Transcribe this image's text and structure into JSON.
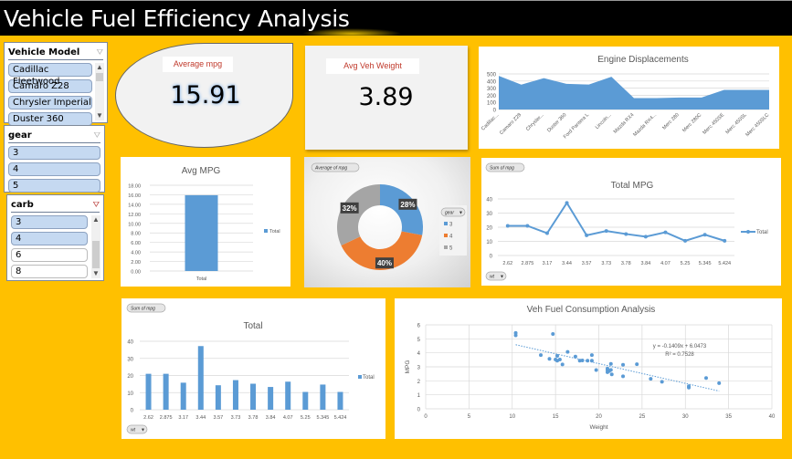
{
  "header": {
    "title": "Vehicle Fuel Efficiency Analysis"
  },
  "slicers": {
    "vehicle_model": {
      "title": "Vehicle Model",
      "items": [
        {
          "label": "Cadillac Fleetwood",
          "selected": true
        },
        {
          "label": "Camaro Z28",
          "selected": true
        },
        {
          "label": "Chrysler Imperial",
          "selected": true
        },
        {
          "label": "Duster 360",
          "selected": true
        }
      ]
    },
    "gear": {
      "title": "gear",
      "items": [
        {
          "label": "3",
          "selected": true
        },
        {
          "label": "4",
          "selected": true
        },
        {
          "label": "5",
          "selected": true
        }
      ]
    },
    "carb": {
      "title": "carb",
      "items": [
        {
          "label": "3",
          "selected": true
        },
        {
          "label": "4",
          "selected": true
        },
        {
          "label": "6",
          "selected": false
        },
        {
          "label": "8",
          "selected": false
        }
      ]
    }
  },
  "kpis": {
    "avg_mpg": {
      "label": "Average mpg",
      "value": "15.91"
    },
    "avg_weight": {
      "label": "Avg Veh Weight",
      "value": "3.89"
    }
  },
  "pills": {
    "average_of_mpg": "Average of mpg",
    "sum_of_mpg": "Sum of mpg",
    "wt": "wt",
    "gear": "gear"
  },
  "chart_data": [
    {
      "id": "engine_displacements",
      "type": "area",
      "title": "Engine Displacements",
      "categories": [
        "Cadillac...",
        "Camaro Z28",
        "Chrysler...",
        "Duster 360",
        "Ford Pantera L",
        "Lincoln...",
        "Mazda RX4",
        "Mazda RX4...",
        "Merc 280",
        "Merc 280C",
        "Merc 450SE",
        "Merc 450SL",
        "Merc 450SLC"
      ],
      "values": [
        472,
        350,
        440,
        360,
        351,
        460,
        160,
        160,
        167.6,
        167.6,
        275.8,
        275.8,
        275.8
      ],
      "ylim": [
        0,
        500
      ],
      "yticks": [
        0,
        100,
        200,
        300,
        400,
        500
      ],
      "color": "#5B9BD5"
    },
    {
      "id": "avg_mpg_bar",
      "type": "bar",
      "title": "Avg MPG",
      "categories": [
        "Total"
      ],
      "values": [
        15.91
      ],
      "ylim": [
        0,
        18
      ],
      "yticks": [
        "0.00",
        "2.00",
        "4.00",
        "6.00",
        "8.00",
        "10.00",
        "12.00",
        "14.00",
        "16.00",
        "18.00"
      ],
      "legend": [
        "Total"
      ],
      "color": "#5B9BD5"
    },
    {
      "id": "gear_donut",
      "type": "pie",
      "title": "Average of mpg",
      "categories": [
        "3",
        "4",
        "5"
      ],
      "values": [
        28,
        40,
        32
      ],
      "labels": [
        "28%",
        "40%",
        "32%"
      ],
      "colors": [
        "#5B9BD5",
        "#ED7D31",
        "#A5A5A5"
      ],
      "legend_title": "gear"
    },
    {
      "id": "total_mpg_line",
      "type": "line",
      "title": "Total MPG",
      "categories": [
        "2.62",
        "2.875",
        "3.17",
        "3.44",
        "3.57",
        "3.73",
        "3.78",
        "3.84",
        "4.07",
        "5.25",
        "5.345",
        "5.424"
      ],
      "values": [
        21,
        21,
        15.8,
        37.2,
        14.3,
        17.3,
        15.2,
        13.3,
        16.4,
        10.4,
        14.7,
        10.4
      ],
      "ylim": [
        0,
        40
      ],
      "yticks": [
        0,
        10,
        20,
        30,
        40
      ],
      "legend": [
        "Total"
      ],
      "color": "#5B9BD5"
    },
    {
      "id": "total_bar",
      "type": "bar",
      "title": "Total",
      "categories": [
        "2.62",
        "2.875",
        "3.17",
        "3.44",
        "3.57",
        "3.73",
        "3.78",
        "3.84",
        "4.07",
        "5.25",
        "5.345",
        "5.424"
      ],
      "values": [
        21,
        21,
        15.8,
        37.2,
        14.3,
        17.3,
        15.2,
        13.3,
        16.4,
        10.4,
        14.7,
        10.4
      ],
      "ylim": [
        0,
        40
      ],
      "yticks": [
        0,
        10,
        20,
        30,
        40
      ],
      "legend": [
        "Total"
      ],
      "color": "#5B9BD5"
    },
    {
      "id": "fuel_scatter",
      "type": "scatter",
      "title": "Veh Fuel Consumption Analysis",
      "xlabel": "Weight",
      "ylabel": "MPG",
      "xlim": [
        0,
        40
      ],
      "ylim": [
        0,
        6
      ],
      "xticks": [
        0,
        5,
        10,
        15,
        20,
        25,
        30,
        35,
        40
      ],
      "yticks": [
        0,
        1,
        2,
        3,
        4,
        5,
        6
      ],
      "points": [
        [
          10.4,
          5.25
        ],
        [
          10.4,
          5.42
        ],
        [
          14.7,
          5.35
        ],
        [
          13.3,
          3.84
        ],
        [
          14.3,
          3.57
        ],
        [
          15.0,
          3.52
        ],
        [
          15.2,
          3.78
        ],
        [
          15.2,
          3.44
        ],
        [
          15.5,
          3.52
        ],
        [
          15.8,
          3.17
        ],
        [
          16.4,
          4.07
        ],
        [
          17.3,
          3.73
        ],
        [
          17.8,
          3.44
        ],
        [
          18.1,
          3.46
        ],
        [
          18.7,
          3.44
        ],
        [
          19.2,
          3.84
        ],
        [
          19.2,
          3.44
        ],
        [
          19.7,
          2.77
        ],
        [
          21.0,
          2.62
        ],
        [
          21.0,
          2.875
        ],
        [
          21.4,
          3.215
        ],
        [
          21.4,
          2.78
        ],
        [
          21.5,
          2.465
        ],
        [
          22.8,
          2.32
        ],
        [
          22.8,
          3.15
        ],
        [
          24.4,
          3.19
        ],
        [
          26.0,
          2.14
        ],
        [
          27.3,
          1.935
        ],
        [
          30.4,
          1.615
        ],
        [
          30.4,
          1.513
        ],
        [
          32.4,
          2.2
        ],
        [
          33.9,
          1.835
        ],
        [
          21.0,
          2.77
        ],
        [
          21.2,
          2.7
        ]
      ],
      "trendline": {
        "equation": "y = -0.1409x + 6.0473",
        "r2": "R² = 0.7528",
        "slope": -0.1409,
        "intercept": 6.0473,
        "x_range": [
          10.4,
          33.9
        ]
      },
      "color": "#5B9BD5"
    }
  ]
}
